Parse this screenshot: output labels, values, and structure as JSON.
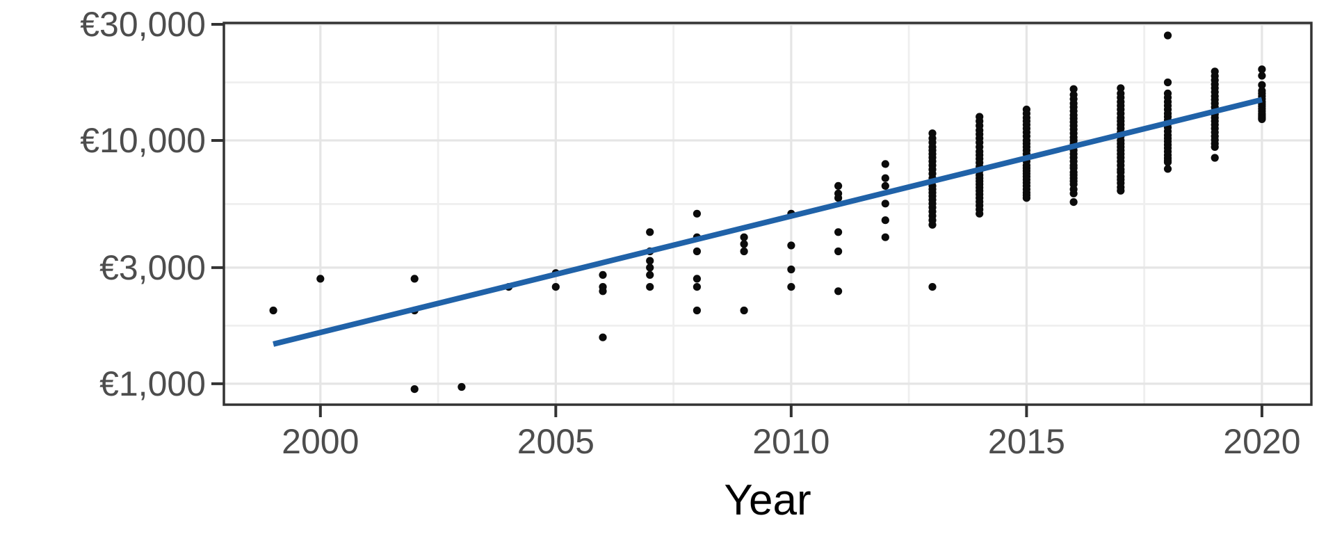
{
  "chart_data": {
    "type": "scatter",
    "title": "",
    "xlabel": "Year",
    "ylabel": "",
    "legend": "none",
    "grid": "on",
    "x_axis": {
      "domain": [
        1997.95,
        2021.05
      ],
      "major_ticks": [
        2000,
        2005,
        2010,
        2015,
        2020
      ],
      "tick_labels": [
        "2000",
        "2005",
        "2010",
        "2015",
        "2020"
      ],
      "minor_breaks": [
        2002.5,
        2007.5,
        2012.5,
        2017.5
      ]
    },
    "y_axis": {
      "scale": "log10",
      "domain": [
        820,
        30400
      ],
      "major_ticks": [
        1000,
        3000,
        10000,
        30000
      ],
      "tick_labels": [
        "€1,000",
        "€3,000",
        "€10,000",
        "€30,000"
      ],
      "minor_breaks": [
        1732,
        5477,
        17321
      ]
    },
    "points_by_year": {
      "1999": [
        2000
      ],
      "2000": [
        2700
      ],
      "2002": [
        2700,
        2000,
        950
      ],
      "2003": [
        970
      ],
      "2004": [
        2500
      ],
      "2005": [
        2850,
        2500
      ],
      "2006": [
        2800,
        2500,
        2400,
        1550
      ],
      "2007": [
        4200,
        3500,
        3200,
        3000,
        2800,
        2500
      ],
      "2008": [
        5000,
        4000,
        3500,
        2700,
        2500,
        2000
      ],
      "2009": [
        4000,
        3750,
        3500,
        2000
      ],
      "2010": [
        5000,
        3700,
        2950,
        2500
      ],
      "2011": [
        6500,
        6050,
        5800,
        4200,
        3500,
        2400
      ],
      "2012": [
        8000,
        7000,
        6500,
        5500,
        4700,
        4000
      ],
      "2013": [
        10700,
        10200,
        9800,
        9400,
        9100,
        8800,
        8500,
        8200,
        7900,
        7600,
        7300,
        7000,
        6800,
        6500,
        6300,
        6100,
        5900,
        5700,
        5500,
        5300,
        5100,
        4900,
        4700,
        4500,
        2500
      ],
      "2014": [
        12500,
        12000,
        11500,
        11000,
        10600,
        10200,
        9800,
        9400,
        9000,
        8700,
        8400,
        8100,
        7800,
        7500,
        7200,
        7000,
        6800,
        6600,
        6400,
        6200,
        6000,
        5800,
        5600,
        5400,
        5200,
        5000
      ],
      "2015": [
        13400,
        12900,
        12400,
        12000,
        11600,
        11200,
        10800,
        10400,
        10000,
        9700,
        9400,
        9100,
        8800,
        8500,
        8200,
        7900,
        7700,
        7500,
        7300,
        7100,
        6900,
        6700,
        6500,
        6300,
        6100,
        5950,
        5800
      ],
      "2016": [
        16260,
        15400,
        14800,
        14200,
        13700,
        13200,
        12700,
        12300,
        11900,
        11500,
        11100,
        10700,
        10300,
        10000,
        9700,
        9400,
        9100,
        8800,
        8500,
        8200,
        7900,
        7700,
        7400,
        7200,
        7000,
        6800,
        6600,
        6300,
        6050,
        5580
      ],
      "2017": [
        16400,
        15600,
        15000,
        14400,
        13900,
        13400,
        12900,
        12400,
        12000,
        11600,
        11200,
        10800,
        10400,
        10000,
        9700,
        9400,
        9100,
        8800,
        8500,
        8200,
        7900,
        7600,
        7400,
        7100,
        6900,
        6680,
        6420,
        6210
      ],
      "2018": [
        27000,
        17320,
        15600,
        15000,
        14400,
        13900,
        13400,
        12900,
        12500,
        12100,
        11700,
        11300,
        10900,
        10500,
        10200,
        9900,
        9600,
        9300,
        9000,
        8700,
        8450,
        8250,
        8140,
        7640
      ],
      "2019": [
        19200,
        18400,
        17700,
        17000,
        16400,
        15800,
        15200,
        14700,
        14200,
        13700,
        13200,
        12800,
        12400,
        12000,
        11600,
        11200,
        10800,
        10400,
        10050,
        9700,
        9400,
        8480
      ],
      "2020": [
        19600,
        18450,
        16900,
        16000,
        15600,
        15200,
        14800,
        14400,
        14100,
        13800,
        13500,
        13200,
        12900,
        12700,
        12500,
        12350,
        12230
      ]
    },
    "trend_line": {
      "name": "linear-fit-log-scale",
      "x": [
        1999,
        2020
      ],
      "y": [
        1455,
        14700
      ]
    },
    "colors": {
      "point": "#0b0b0b",
      "trend": "#2062a8",
      "grid_major": "#e5e5e5",
      "grid_minor": "#efefef",
      "panel_border": "#333333",
      "tick_mark": "#333333",
      "tick_label": "#4d4d4d",
      "axis_title": "#000000",
      "background": "#ffffff"
    }
  }
}
